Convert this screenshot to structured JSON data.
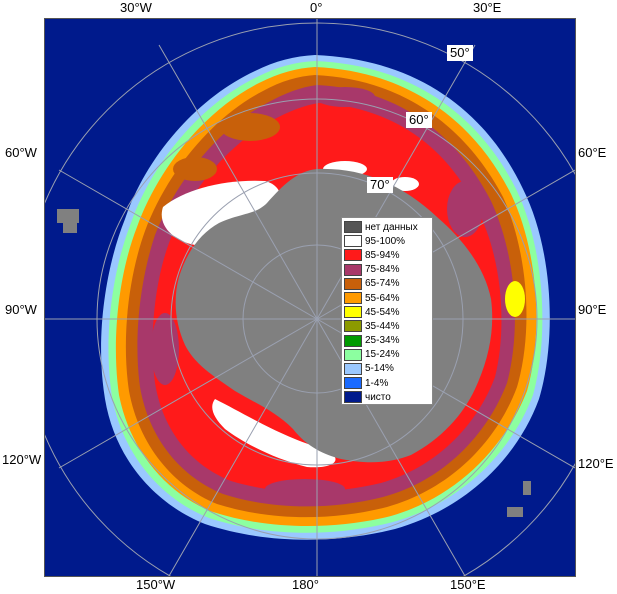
{
  "map": {
    "meridian_labels": {
      "top_30w": "30°W",
      "top_0": "0°",
      "top_30e": "30°E",
      "left_60w": "60°W",
      "right_60e": "60°E",
      "left_90w": "90°W",
      "right_90e": "90°E",
      "left_120w": "120°W",
      "right_120e": "120°E",
      "bottom_150w": "150°W",
      "bottom_180": "180°",
      "bottom_150e": "150°E"
    },
    "latitude_labels": {
      "lat_50": "50°",
      "lat_60": "60°",
      "lat_70": "70°"
    }
  },
  "legend": {
    "items": [
      {
        "label": "нет данных",
        "color": "#555555"
      },
      {
        "label": "95-100%",
        "color": "#ffffff"
      },
      {
        "label": "85-94%",
        "color": "#ff1a1a"
      },
      {
        "label": "75-84%",
        "color": "#a8386a"
      },
      {
        "label": "65-74%",
        "color": "#c8600a"
      },
      {
        "label": "55-64%",
        "color": "#ff9a00"
      },
      {
        "label": "45-54%",
        "color": "#ffff00"
      },
      {
        "label": "35-44%",
        "color": "#8c9a00"
      },
      {
        "label": "25-34%",
        "color": "#009a00"
      },
      {
        "label": "15-24%",
        "color": "#8cffa0"
      },
      {
        "label": "5-14%",
        "color": "#9ac8ff"
      },
      {
        "label": "1-4%",
        "color": "#1a6aff"
      },
      {
        "label": "чисто",
        "color": "#001a8c"
      }
    ]
  },
  "colors": {
    "ocean": "#001a8c",
    "land": "#808080",
    "no_data": "#555555",
    "grid": "#9aa0b0"
  }
}
